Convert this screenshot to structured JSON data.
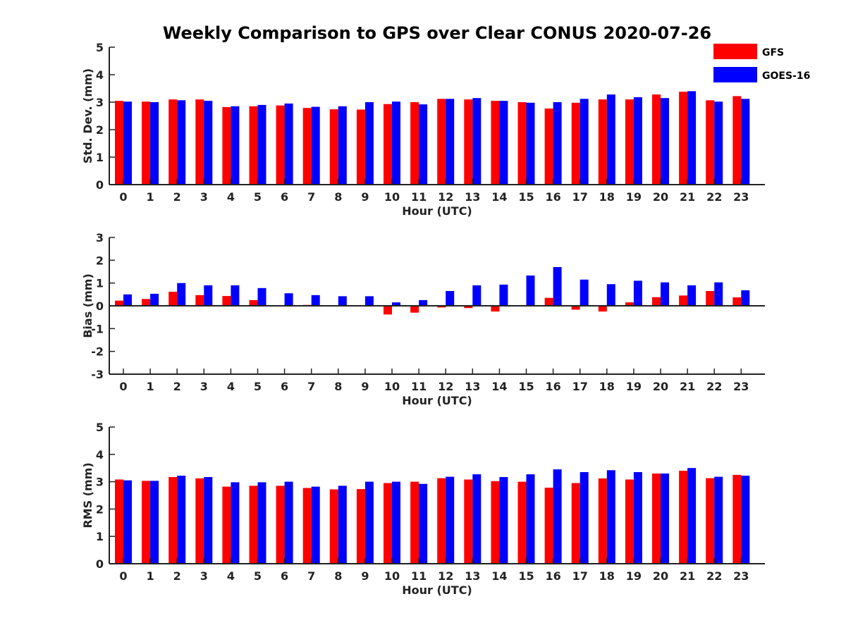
{
  "title": "Weekly Comparison to GPS over Clear CONUS 2020-07-26",
  "colors": {
    "gfs": "#ff0000",
    "goes": "#0000ff",
    "axis": "#222222"
  },
  "legend": {
    "placement": "top-right",
    "items": [
      "GFS",
      "GOES-16"
    ]
  },
  "chart_data": [
    {
      "type": "bar",
      "ylabel": "Std. Dev. (mm)",
      "xlabel": "Hour (UTC)",
      "ylim": [
        0,
        5
      ],
      "yticks": [
        0,
        1,
        2,
        3,
        4,
        5
      ],
      "categories": [
        "0",
        "1",
        "2",
        "3",
        "4",
        "5",
        "6",
        "7",
        "8",
        "9",
        "10",
        "11",
        "12",
        "13",
        "14",
        "15",
        "16",
        "17",
        "18",
        "19",
        "20",
        "21",
        "22",
        "23"
      ],
      "series": [
        {
          "name": "GFS",
          "values": [
            3.05,
            3.02,
            3.1,
            3.1,
            2.82,
            2.85,
            2.88,
            2.79,
            2.74,
            2.73,
            2.93,
            3.0,
            3.12,
            3.1,
            3.05,
            3.0,
            2.77,
            2.98,
            3.1,
            3.1,
            3.28,
            3.38,
            3.07,
            3.22
          ]
        },
        {
          "name": "GOES-16",
          "values": [
            3.02,
            3.0,
            3.07,
            3.05,
            2.85,
            2.9,
            2.95,
            2.83,
            2.85,
            3.0,
            3.02,
            2.92,
            3.12,
            3.15,
            3.05,
            2.98,
            3.0,
            3.12,
            3.28,
            3.18,
            3.15,
            3.4,
            3.02,
            3.12
          ]
        }
      ]
    },
    {
      "type": "bar",
      "ylabel": "Bias (mm)",
      "xlabel": "Hour (UTC)",
      "ylim": [
        -3,
        3
      ],
      "yticks": [
        -3,
        -2,
        -1,
        0,
        1,
        2,
        3
      ],
      "categories": [
        "0",
        "1",
        "2",
        "3",
        "4",
        "5",
        "6",
        "7",
        "8",
        "9",
        "10",
        "11",
        "12",
        "13",
        "14",
        "15",
        "16",
        "17",
        "18",
        "19",
        "20",
        "21",
        "22",
        "23"
      ],
      "series": [
        {
          "name": "GFS",
          "values": [
            0.23,
            0.3,
            0.62,
            0.47,
            0.43,
            0.25,
            0.03,
            0.04,
            0.0,
            0.0,
            -0.38,
            -0.3,
            -0.07,
            -0.1,
            -0.25,
            0.0,
            0.35,
            -0.17,
            -0.25,
            0.15,
            0.38,
            0.45,
            0.65,
            0.37
          ]
        },
        {
          "name": "GOES-16",
          "values": [
            0.5,
            0.53,
            1.0,
            0.9,
            0.9,
            0.78,
            0.55,
            0.47,
            0.42,
            0.42,
            0.15,
            0.25,
            0.65,
            0.9,
            0.93,
            1.33,
            1.7,
            1.15,
            0.95,
            1.1,
            1.03,
            0.9,
            1.03,
            0.68
          ]
        }
      ]
    },
    {
      "type": "bar",
      "ylabel": "RMS (mm)",
      "xlabel": "Hour (UTC)",
      "ylim": [
        0,
        5
      ],
      "yticks": [
        0,
        1,
        2,
        3,
        4,
        5
      ],
      "categories": [
        "0",
        "1",
        "2",
        "3",
        "4",
        "5",
        "6",
        "7",
        "8",
        "9",
        "10",
        "11",
        "12",
        "13",
        "14",
        "15",
        "16",
        "17",
        "18",
        "19",
        "20",
        "21",
        "22",
        "23"
      ],
      "series": [
        {
          "name": "GFS",
          "values": [
            3.08,
            3.03,
            3.17,
            3.12,
            2.82,
            2.85,
            2.85,
            2.77,
            2.72,
            2.73,
            2.95,
            3.0,
            3.13,
            3.08,
            3.02,
            3.0,
            2.78,
            2.95,
            3.12,
            3.08,
            3.3,
            3.4,
            3.13,
            3.25
          ]
        },
        {
          "name": "GOES-16",
          "values": [
            3.05,
            3.03,
            3.22,
            3.17,
            2.98,
            2.98,
            3.0,
            2.82,
            2.85,
            3.0,
            3.0,
            2.92,
            3.18,
            3.27,
            3.17,
            3.27,
            3.45,
            3.35,
            3.42,
            3.35,
            3.3,
            3.5,
            3.18,
            3.22
          ]
        }
      ]
    }
  ]
}
